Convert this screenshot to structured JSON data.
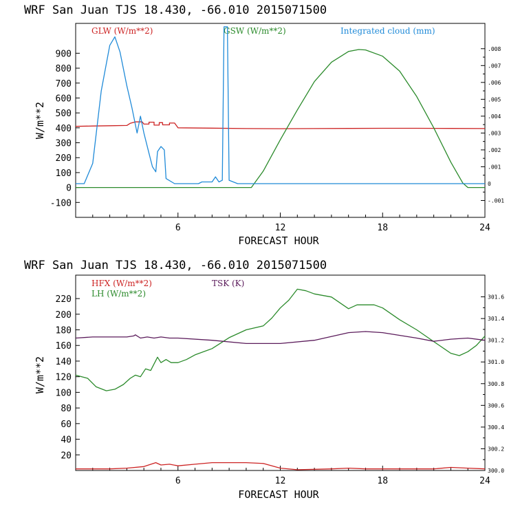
{
  "colors": {
    "red": "#cc2222",
    "green": "#2a8a2a",
    "blue": "#1f8ad8",
    "purple": "#5a1a5a"
  },
  "panels": [
    {
      "title": "WRF  San Juan TJS  18.430, -66.010  2015071500",
      "ylabel": "W/m**2",
      "xlabel": "FORECAST HOUR",
      "legend": [
        "GLW (W/m**2)",
        "GSW (W/m**2)",
        "Integrated cloud (mm)"
      ]
    },
    {
      "title": "WRF  San Juan TJS  18.430, -66.010  2015071500",
      "ylabel": "W/m**2",
      "xlabel": "FORECAST HOUR",
      "legend": [
        "HFX (W/m**2)",
        "LH  (W/m**2)",
        "TSK (K)"
      ]
    }
  ],
  "chart_data": [
    {
      "type": "line",
      "title": "WRF  San Juan TJS  18.430, -66.010  2015071500",
      "xlabel": "FORECAST HOUR",
      "ylabel": "W/m**2",
      "xlim": [
        0,
        24
      ],
      "ylim": [
        -200,
        1100
      ],
      "x_ticks": [
        6,
        12,
        18,
        24
      ],
      "y_ticks": [
        -100,
        0,
        100,
        200,
        300,
        400,
        500,
        600,
        700,
        800,
        900
      ],
      "y2lim": [
        -0.002,
        0.0095
      ],
      "y2_ticks": [
        "-.001",
        "0",
        ".001",
        ".002",
        ".003",
        ".004",
        ".005",
        ".006",
        ".007",
        ".008"
      ],
      "series": [
        {
          "name": "GLW (W/m**2)",
          "color": "#cc2222",
          "axis": "left",
          "points": [
            [
              0,
              410
            ],
            [
              1,
              412
            ],
            [
              2,
              414
            ],
            [
              3,
              416
            ],
            [
              3.2,
              430
            ],
            [
              3.5,
              440
            ],
            [
              3.9,
              440
            ],
            [
              4,
              425
            ],
            [
              4.3,
              425
            ],
            [
              4.3,
              438
            ],
            [
              4.6,
              438
            ],
            [
              4.6,
              418
            ],
            [
              4.9,
              418
            ],
            [
              4.9,
              435
            ],
            [
              5.1,
              435
            ],
            [
              5.1,
              420
            ],
            [
              5.5,
              420
            ],
            [
              5.5,
              432
            ],
            [
              5.8,
              432
            ],
            [
              6,
              400
            ],
            [
              8,
              398
            ],
            [
              10,
              395
            ],
            [
              12,
              394
            ],
            [
              14,
              395
            ],
            [
              16,
              396
            ],
            [
              18,
              397
            ],
            [
              20,
              397
            ],
            [
              22,
              396
            ],
            [
              24,
              395
            ]
          ]
        },
        {
          "name": "GSW (W/m**2)",
          "color": "#2a8a2a",
          "axis": "left",
          "points": [
            [
              0,
              0
            ],
            [
              10.3,
              0
            ],
            [
              11,
              110
            ],
            [
              12,
              320
            ],
            [
              13,
              520
            ],
            [
              14,
              710
            ],
            [
              15,
              840
            ],
            [
              16,
              912
            ],
            [
              16.6,
              925
            ],
            [
              17,
              922
            ],
            [
              18,
              880
            ],
            [
              19,
              780
            ],
            [
              20,
              610
            ],
            [
              21,
              400
            ],
            [
              22,
              170
            ],
            [
              22.7,
              30
            ],
            [
              23,
              0
            ],
            [
              24,
              0
            ]
          ]
        },
        {
          "name": "Integrated cloud (mm)",
          "color": "#1f8ad8",
          "axis": "right",
          "points": [
            [
              0,
              0
            ],
            [
              0.5,
              0
            ],
            [
              1,
              0.0012
            ],
            [
              1.5,
              0.0055
            ],
            [
              2,
              0.0082
            ],
            [
              2.3,
              0.0087
            ],
            [
              2.6,
              0.0078
            ],
            [
              3,
              0.0058
            ],
            [
              3.3,
              0.0045
            ],
            [
              3.5,
              0.0035
            ],
            [
              3.6,
              0.003
            ],
            [
              3.8,
              0.004
            ],
            [
              4,
              0.003
            ],
            [
              4.3,
              0.0018
            ],
            [
              4.5,
              0.001
            ],
            [
              4.7,
              0.0007
            ],
            [
              4.8,
              0.0019
            ],
            [
              5,
              0.0022
            ],
            [
              5.2,
              0.002
            ],
            [
              5.3,
              0.0003
            ],
            [
              5.8,
              0
            ],
            [
              7.2,
              0
            ],
            [
              7.4,
              0.0001
            ],
            [
              8.0,
              0.0001
            ],
            [
              8.2,
              0.0004
            ],
            [
              8.4,
              0.0001
            ],
            [
              8.6,
              0.0002
            ],
            [
              8.7,
              0.0093
            ],
            [
              8.9,
              0.0093
            ],
            [
              9.0,
              0.0002
            ],
            [
              9.5,
              0
            ],
            [
              10,
              0
            ],
            [
              24,
              0
            ]
          ]
        }
      ]
    },
    {
      "type": "line",
      "title": "WRF  San Juan TJS  18.430, -66.010  2015071500",
      "xlabel": "FORECAST HOUR",
      "ylabel": "W/m**2",
      "xlim": [
        0,
        24
      ],
      "ylim": [
        0,
        250
      ],
      "x_ticks": [
        6,
        12,
        18,
        24
      ],
      "y_ticks": [
        20,
        40,
        60,
        80,
        100,
        120,
        140,
        160,
        180,
        200,
        220
      ],
      "y2lim": [
        300.0,
        301.8
      ],
      "y2_ticks": [
        "300.0",
        "300.2",
        "300.4",
        "300.6",
        "300.8",
        "301.0",
        "301.2",
        "301.4",
        "301.6"
      ],
      "series": [
        {
          "name": "HFX (W/m**2)",
          "color": "#cc2222",
          "axis": "left",
          "points": [
            [
              0,
              2
            ],
            [
              2,
              2
            ],
            [
              3,
              3
            ],
            [
              4,
              5
            ],
            [
              4.7,
              10
            ],
            [
              5,
              7
            ],
            [
              5.5,
              8
            ],
            [
              6,
              6
            ],
            [
              7,
              8
            ],
            [
              8,
              10
            ],
            [
              9,
              10
            ],
            [
              10,
              10
            ],
            [
              11,
              9
            ],
            [
              12,
              3
            ],
            [
              13,
              1
            ],
            [
              15,
              2
            ],
            [
              16,
              3
            ],
            [
              17,
              2
            ],
            [
              18,
              2
            ],
            [
              20,
              2
            ],
            [
              21,
              2
            ],
            [
              22,
              4
            ],
            [
              23,
              3
            ],
            [
              24,
              2
            ]
          ]
        },
        {
          "name": "LH  (W/m**2)",
          "color": "#2a8a2a",
          "axis": "left",
          "points": [
            [
              0,
              122
            ],
            [
              0.7,
              118
            ],
            [
              1.2,
              107
            ],
            [
              1.8,
              102
            ],
            [
              2.3,
              104
            ],
            [
              2.8,
              110
            ],
            [
              3.2,
              118
            ],
            [
              3.5,
              122
            ],
            [
              3.8,
              120
            ],
            [
              4.1,
              130
            ],
            [
              4.4,
              128
            ],
            [
              4.8,
              145
            ],
            [
              5,
              138
            ],
            [
              5.3,
              142
            ],
            [
              5.6,
              138
            ],
            [
              6,
              138
            ],
            [
              6.5,
              142
            ],
            [
              7,
              148
            ],
            [
              8,
              156
            ],
            [
              9,
              170
            ],
            [
              10,
              180
            ],
            [
              11,
              185
            ],
            [
              11.5,
              195
            ],
            [
              12,
              208
            ],
            [
              12.5,
              218
            ],
            [
              13,
              232
            ],
            [
              13.5,
              230
            ],
            [
              14,
              226
            ],
            [
              15,
              222
            ],
            [
              16,
              207
            ],
            [
              16.5,
              212
            ],
            [
              17,
              212
            ],
            [
              17.5,
              212
            ],
            [
              18,
              208
            ],
            [
              19,
              193
            ],
            [
              20,
              180
            ],
            [
              21,
              165
            ],
            [
              22,
              150
            ],
            [
              22.5,
              147
            ],
            [
              23,
              152
            ],
            [
              23.5,
              160
            ],
            [
              24,
              172
            ]
          ]
        },
        {
          "name": "TSK (K)",
          "color": "#5a1a5a",
          "axis": "right",
          "points": [
            [
              0,
              301.22
            ],
            [
              1,
              301.23
            ],
            [
              2,
              301.23
            ],
            [
              3,
              301.23
            ],
            [
              3.4,
              301.24
            ],
            [
              3.5,
              301.25
            ],
            [
              3.8,
              301.22
            ],
            [
              4.2,
              301.23
            ],
            [
              4.6,
              301.22
            ],
            [
              5,
              301.23
            ],
            [
              5.5,
              301.22
            ],
            [
              6,
              301.22
            ],
            [
              8,
              301.2
            ],
            [
              10,
              301.17
            ],
            [
              12,
              301.17
            ],
            [
              14,
              301.2
            ],
            [
              16,
              301.27
            ],
            [
              17,
              301.28
            ],
            [
              18,
              301.27
            ],
            [
              20,
              301.22
            ],
            [
              21,
              301.19
            ],
            [
              22,
              301.21
            ],
            [
              23,
              301.22
            ],
            [
              24,
              301.2
            ]
          ]
        }
      ]
    }
  ]
}
